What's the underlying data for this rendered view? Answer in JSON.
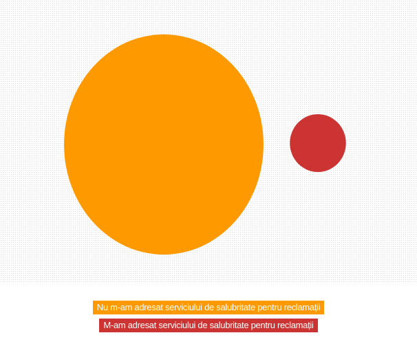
{
  "chart_data": {
    "type": "bubble",
    "series": [
      {
        "name": "Nu m-am adresat serviciului de salubritate pentru reclamații",
        "value": 87,
        "color": "#ff9900"
      },
      {
        "name": "M-am adresat serviciului de salubritate pentru reclamații",
        "value": 6,
        "color": "#cc3333"
      }
    ],
    "legend_position": "bottom",
    "background": "dotted"
  }
}
